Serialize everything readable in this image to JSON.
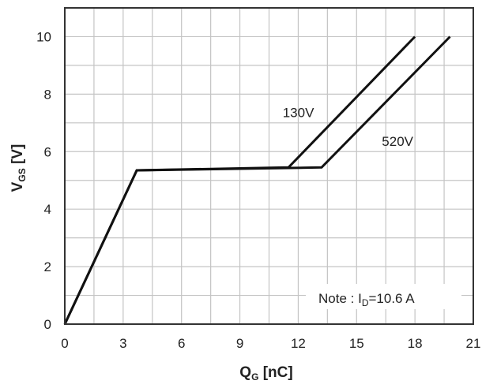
{
  "chart_data": {
    "type": "line",
    "xlabel": {
      "main": "Q",
      "sub": "G",
      "unit": " [nC]"
    },
    "ylabel": {
      "main": "V",
      "sub": "GS",
      "unit": " [V]"
    },
    "xlim": [
      0,
      21
    ],
    "ylim": [
      0,
      11
    ],
    "x_ticks": [
      "0",
      "3",
      "6",
      "9",
      "12",
      "15",
      "18",
      "21"
    ],
    "y_ticks": [
      "0",
      "2",
      "4",
      "6",
      "8",
      "10"
    ],
    "grid": true,
    "series": [
      {
        "name": "130V",
        "x": [
          0,
          3.7,
          11.5,
          18.0
        ],
        "y": [
          0,
          5.35,
          5.45,
          10.0
        ]
      },
      {
        "name": "520V",
        "x": [
          0,
          3.7,
          13.2,
          19.8
        ],
        "y": [
          0,
          5.35,
          5.45,
          10.0
        ]
      }
    ],
    "note": {
      "prefix": "Note : I",
      "sub": "D",
      "suffix": "=10.6  A"
    }
  }
}
